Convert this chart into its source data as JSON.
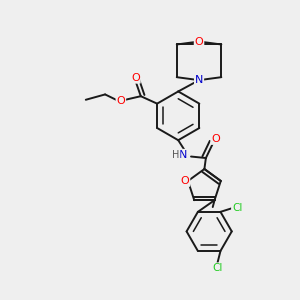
{
  "bg_color": "#efefef",
  "bond_color": "#1a1a1a",
  "atom_colors": {
    "O": "#ff0000",
    "N": "#0000cc",
    "Cl": "#22cc22",
    "C": "#1a1a1a",
    "H": "#555555"
  },
  "figsize": [
    3.0,
    3.0
  ],
  "dpi": 100
}
